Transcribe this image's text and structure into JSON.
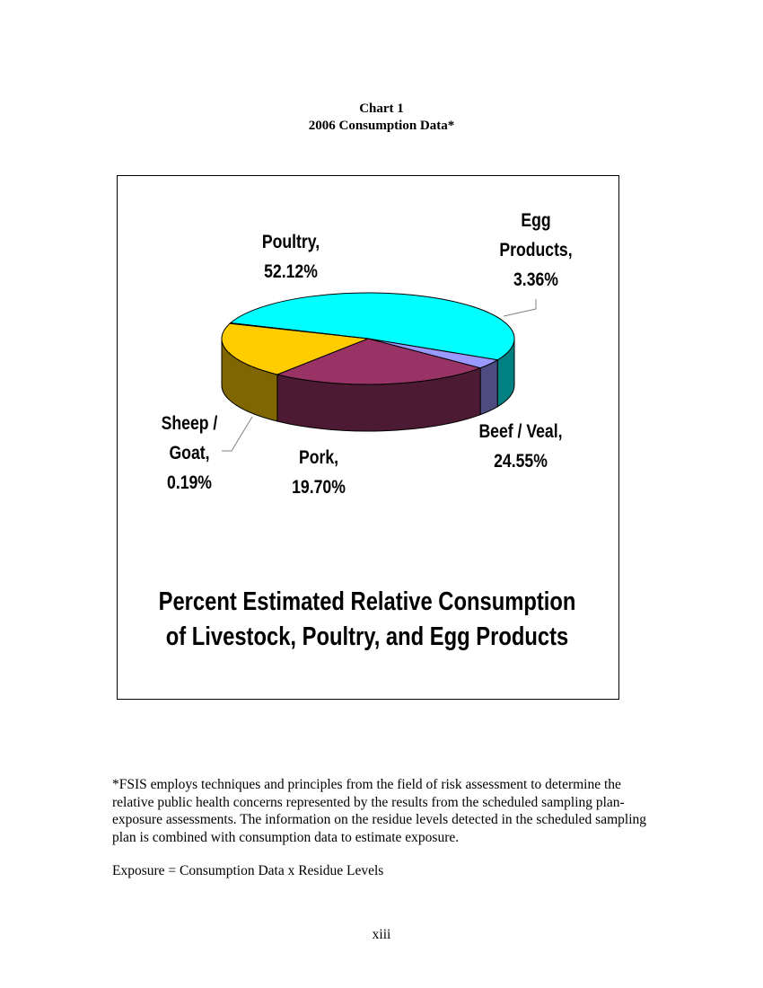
{
  "page": {
    "chart_number": "Chart 1",
    "chart_heading": "2006 Consumption Data*",
    "footnote": "*FSIS employs techniques and principles from the field of risk assessment to determine the relative public health concerns represented by the results from the scheduled sampling plan-exposure assessments. The information on the residue levels detected in the scheduled sampling plan is combined with consumption data to estimate exposure.",
    "equation": "Exposure = Consumption Data x Residue Levels",
    "page_number": "xiii"
  },
  "chart_data": {
    "type": "pie",
    "style": "3d-exploded",
    "title": "Percent Estimated Relative Consumption of Livestock, Poultry, and Egg Products",
    "title_lines": [
      "Percent Estimated Relative Consumption",
      "of Livestock, Poultry, and Egg Products"
    ],
    "slices": [
      {
        "name": "Poultry",
        "value": 52.12,
        "label_lines": [
          "Poultry,",
          "52.12%"
        ],
        "color": "#00FFFF",
        "side_color": "#008080"
      },
      {
        "name": "Egg Products",
        "value": 3.36,
        "label_lines": [
          "Egg",
          "Products,",
          "3.36%"
        ],
        "color": "#9999FF",
        "side_color": "#4C4C80"
      },
      {
        "name": "Beef / Veal",
        "value": 24.55,
        "label_lines": [
          "Beef / Veal,",
          "24.55%"
        ],
        "color": "#993366",
        "side_color": "#4D1A33"
      },
      {
        "name": "Pork",
        "value": 19.7,
        "label_lines": [
          "Pork,",
          "19.70%"
        ],
        "color": "#FFCC00",
        "side_color": "#806600"
      },
      {
        "name": "Sheep / Goat",
        "value": 0.19,
        "label_lines": [
          "Sheep /",
          "Goat,",
          "0.19%"
        ],
        "color": "#00CCCC",
        "side_color": "#006666"
      }
    ],
    "legend": "none"
  }
}
